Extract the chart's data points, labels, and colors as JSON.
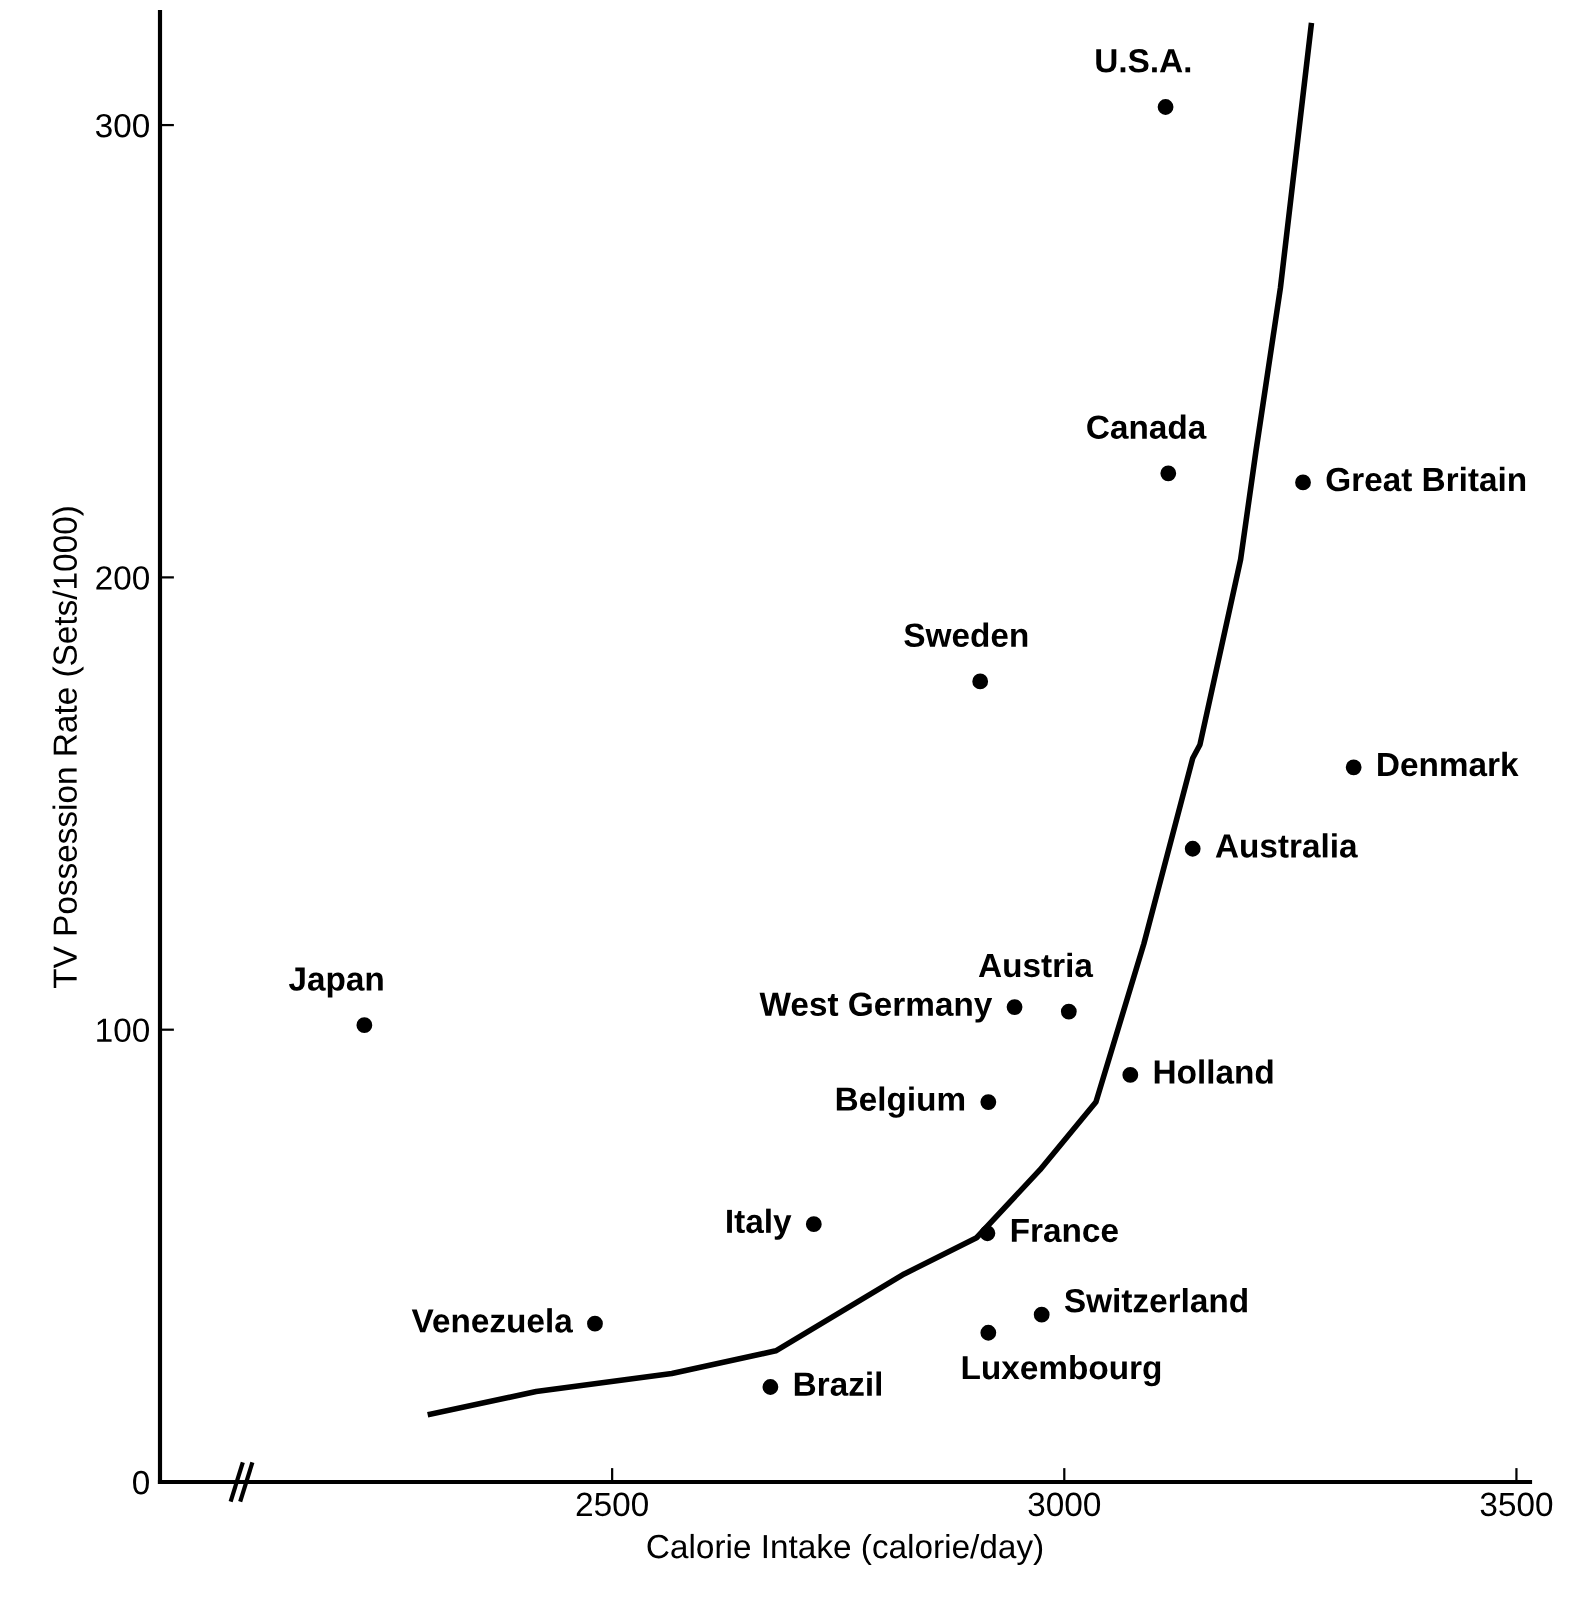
{
  "chart_data": {
    "type": "scatter",
    "xlabel": "Calorie Intake (calorie/day)",
    "ylabel": "TV Possession Rate (Sets/1000)",
    "xlim": [
      2000,
      3515
    ],
    "ylim": [
      0,
      325
    ],
    "xticks": [
      2500,
      3000,
      3500
    ],
    "yticks": [
      0,
      100,
      200,
      300
    ],
    "grid": false,
    "marker": "circle",
    "series": [
      {
        "color": "#000000",
        "x": [
          3112,
          3115,
          3264,
          2907,
          3320,
          3142,
          2226,
          2945,
          3005,
          3073,
          2916,
          2723,
          2915,
          2481,
          2975,
          2916,
          2675
        ],
        "values": [
          304,
          223,
          221,
          177,
          158,
          140,
          101,
          105,
          104,
          90,
          84,
          57,
          55,
          35,
          37,
          33,
          21
        ]
      },
      {
        "type": "line",
        "color": "#000000",
        "line_style": "solid",
        "marker": "none",
        "x": [
          2299,
          2416,
          2566,
          2681,
          2823,
          2903,
          2973,
          3035,
          3088,
          3142,
          3150,
          3195,
          3212,
          3239,
          3273
        ],
        "values": [
          15,
          20,
          24,
          29,
          46,
          54,
          69,
          84,
          119,
          160,
          163,
          204,
          228,
          264,
          322
        ]
      }
    ],
    "annotations": [
      {
        "text": "U.S.A.",
        "x": 3112,
        "y": 304
      },
      {
        "text": "Canada",
        "x": 3115,
        "y": 223
      },
      {
        "text": "Great Britain",
        "x": 3264,
        "y": 221
      },
      {
        "text": "Sweden",
        "x": 2907,
        "y": 177
      },
      {
        "text": "Denmark",
        "x": 3320,
        "y": 158
      },
      {
        "text": "Australia",
        "x": 3142,
        "y": 140
      },
      {
        "text": "Japan",
        "x": 2226,
        "y": 101
      },
      {
        "text": "West Germany",
        "x": 2945,
        "y": 105
      },
      {
        "text": "Austria",
        "x": 3005,
        "y": 104
      },
      {
        "text": "Holland",
        "x": 3073,
        "y": 90
      },
      {
        "text": "Belgium",
        "x": 2916,
        "y": 84
      },
      {
        "text": "Italy",
        "x": 2723,
        "y": 57
      },
      {
        "text": "France",
        "x": 2915,
        "y": 55
      },
      {
        "text": "Venezuela",
        "x": 2481,
        "y": 35
      },
      {
        "text": "Switzerland",
        "x": 2975,
        "y": 37
      },
      {
        "text": "Luxembourg",
        "x": 2916,
        "y": 33
      },
      {
        "text": "Brazil",
        "x": 2675,
        "y": 21
      }
    ]
  }
}
